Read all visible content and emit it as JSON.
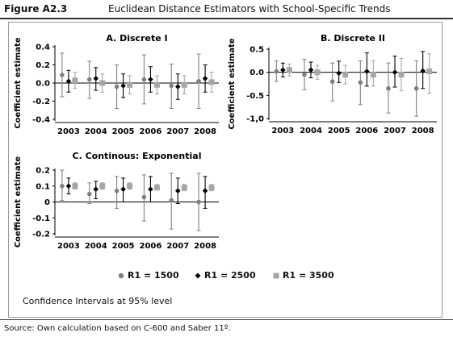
{
  "figure": {
    "label": "Figure A2.3",
    "title": "Euclidean Distance Estimators with School-Specific Trends",
    "note": "Confidence Intervals at 95% level",
    "source": "Source: Own calculation based on C-600 and Saber 11º."
  },
  "colors": {
    "R1 = 1500": "#808080",
    "R1 = 2500": "#000000",
    "R1 = 3500": "#a6a6a6"
  },
  "legend": [
    {
      "label": "R1 = 1500",
      "marker": "circle",
      "color": "#808080"
    },
    {
      "label": "R1 = 2500",
      "marker": "diamond",
      "color": "#000000"
    },
    {
      "label": "R1 = 3500",
      "marker": "square",
      "color": "#a6a6a6"
    }
  ],
  "chart_data": [
    {
      "type": "scatter",
      "title": "A. Discrete I",
      "ylabel": "Coefficient estimate",
      "ylim": [
        -0.4,
        0.4
      ],
      "yticks": [
        -0.4,
        -0.2,
        0.0,
        0.2,
        0.4
      ],
      "ytick_labels": [
        "-0.4",
        "-0.2",
        "0.0",
        "0.2",
        "0.4"
      ],
      "categories": [
        "2003",
        "2004",
        "2005",
        "2006",
        "2007",
        "2008"
      ],
      "series": [
        {
          "name": "R1 = 1500",
          "values": [
            0.09,
            0.04,
            -0.04,
            0.04,
            -0.03,
            0.02
          ],
          "lower": [
            -0.15,
            -0.17,
            -0.28,
            -0.23,
            -0.28,
            -0.28
          ],
          "upper": [
            0.33,
            0.24,
            0.2,
            0.31,
            0.21,
            0.32
          ]
        },
        {
          "name": "R1 = 2500",
          "values": [
            0.02,
            0.05,
            -0.03,
            0.04,
            -0.04,
            0.05
          ],
          "lower": [
            -0.1,
            -0.08,
            -0.16,
            -0.1,
            -0.18,
            -0.1
          ],
          "upper": [
            0.14,
            0.17,
            0.1,
            0.18,
            0.1,
            0.2
          ]
        },
        {
          "name": "R1 = 3500",
          "values": [
            0.03,
            0.0,
            -0.02,
            -0.02,
            -0.02,
            0.01
          ],
          "lower": [
            -0.06,
            -0.1,
            -0.12,
            -0.12,
            -0.12,
            -0.1
          ],
          "upper": [
            0.12,
            0.1,
            0.08,
            0.08,
            0.08,
            0.12
          ]
        }
      ]
    },
    {
      "type": "scatter",
      "title": "B. Discrete II",
      "ylabel": "Coefficient estimate",
      "ylim": [
        -1.0,
        0.5
      ],
      "yticks": [
        -1.0,
        -0.5,
        0.0,
        0.5
      ],
      "ytick_labels": [
        "-1,0",
        "-0.5",
        "0.0",
        "0.5"
      ],
      "categories": [
        "2003",
        "2004",
        "2005",
        "2006",
        "2007",
        "2008"
      ],
      "series": [
        {
          "name": "R1 = 1500",
          "values": [
            0.02,
            -0.05,
            -0.2,
            -0.22,
            -0.35,
            -0.35
          ],
          "lower": [
            -0.2,
            -0.38,
            -0.62,
            -0.7,
            -0.88,
            -0.95
          ],
          "upper": [
            0.25,
            0.28,
            0.2,
            0.25,
            0.2,
            0.25
          ]
        },
        {
          "name": "R1 = 2500",
          "values": [
            0.05,
            0.05,
            -0.02,
            0.02,
            0.0,
            0.03
          ],
          "lower": [
            -0.1,
            -0.12,
            -0.22,
            -0.3,
            -0.32,
            -0.35
          ],
          "upper": [
            0.2,
            0.22,
            0.24,
            0.42,
            0.35,
            0.45
          ]
        },
        {
          "name": "R1 = 3500",
          "values": [
            0.05,
            0.0,
            -0.05,
            -0.05,
            -0.05,
            0.02
          ],
          "lower": [
            -0.08,
            -0.15,
            -0.25,
            -0.3,
            -0.4,
            -0.45
          ],
          "upper": [
            0.18,
            0.15,
            0.15,
            0.25,
            0.3,
            0.4
          ]
        }
      ]
    },
    {
      "type": "scatter",
      "title": "C. Continous: Exponential",
      "ylabel": "Coefficient estimate",
      "ylim": [
        -0.2,
        0.2
      ],
      "yticks": [
        -0.2,
        -0.1,
        0.0,
        0.1,
        0.2
      ],
      "ytick_labels": [
        "-0.2",
        "-0.1",
        "0",
        "0.1",
        "0.2"
      ],
      "categories": [
        "2003",
        "2004",
        "2005",
        "2006",
        "2007",
        "2008"
      ],
      "series": [
        {
          "name": "R1 = 1500",
          "values": [
            0.1,
            0.05,
            0.07,
            0.03,
            0.01,
            0.0
          ],
          "lower": [
            0.01,
            -0.01,
            -0.04,
            -0.12,
            -0.17,
            -0.18
          ],
          "upper": [
            0.2,
            0.12,
            0.16,
            0.17,
            0.18,
            0.18
          ]
        },
        {
          "name": "R1 = 2500",
          "values": [
            0.1,
            0.08,
            0.08,
            0.08,
            0.07,
            0.07
          ],
          "lower": [
            0.05,
            0.02,
            0.0,
            0.0,
            -0.01,
            -0.04
          ],
          "upper": [
            0.15,
            0.13,
            0.15,
            0.16,
            0.15,
            0.16
          ]
        },
        {
          "name": "R1 = 3500",
          "values": [
            0.1,
            0.1,
            0.1,
            0.09,
            0.09,
            0.09
          ],
          "lower": [
            0.08,
            0.08,
            0.08,
            0.08,
            0.07,
            0.07
          ],
          "upper": [
            0.12,
            0.12,
            0.12,
            0.11,
            0.11,
            0.11
          ]
        }
      ]
    }
  ]
}
